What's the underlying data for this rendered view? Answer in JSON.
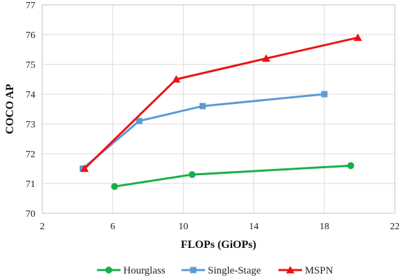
{
  "chart_data": {
    "type": "line",
    "title": "",
    "xlabel": "FLOPs (GiOPs)",
    "ylabel": "COCO AP",
    "xlim": [
      2,
      22
    ],
    "ylim": [
      70,
      77
    ],
    "xticks": [
      2,
      6,
      10,
      14,
      18,
      22
    ],
    "yticks": [
      70,
      71,
      72,
      73,
      74,
      75,
      76,
      77
    ],
    "grid": true,
    "legend": "bottom",
    "series": [
      {
        "name": "Hourglass",
        "color": "#16b04a",
        "marker": "circle",
        "points": [
          [
            6.1,
            70.9
          ],
          [
            10.5,
            71.3
          ],
          [
            19.5,
            71.6
          ]
        ]
      },
      {
        "name": "Single-Stage",
        "color": "#5b9bd5",
        "marker": "square",
        "points": [
          [
            4.3,
            71.5
          ],
          [
            7.5,
            73.1
          ],
          [
            11.1,
            73.6
          ],
          [
            18.0,
            74.0
          ]
        ]
      },
      {
        "name": "MSPN",
        "color": "#ee1111",
        "marker": "triangle",
        "points": [
          [
            4.4,
            71.5
          ],
          [
            9.6,
            74.5
          ],
          [
            14.7,
            75.2
          ],
          [
            19.9,
            75.9
          ]
        ]
      }
    ]
  }
}
